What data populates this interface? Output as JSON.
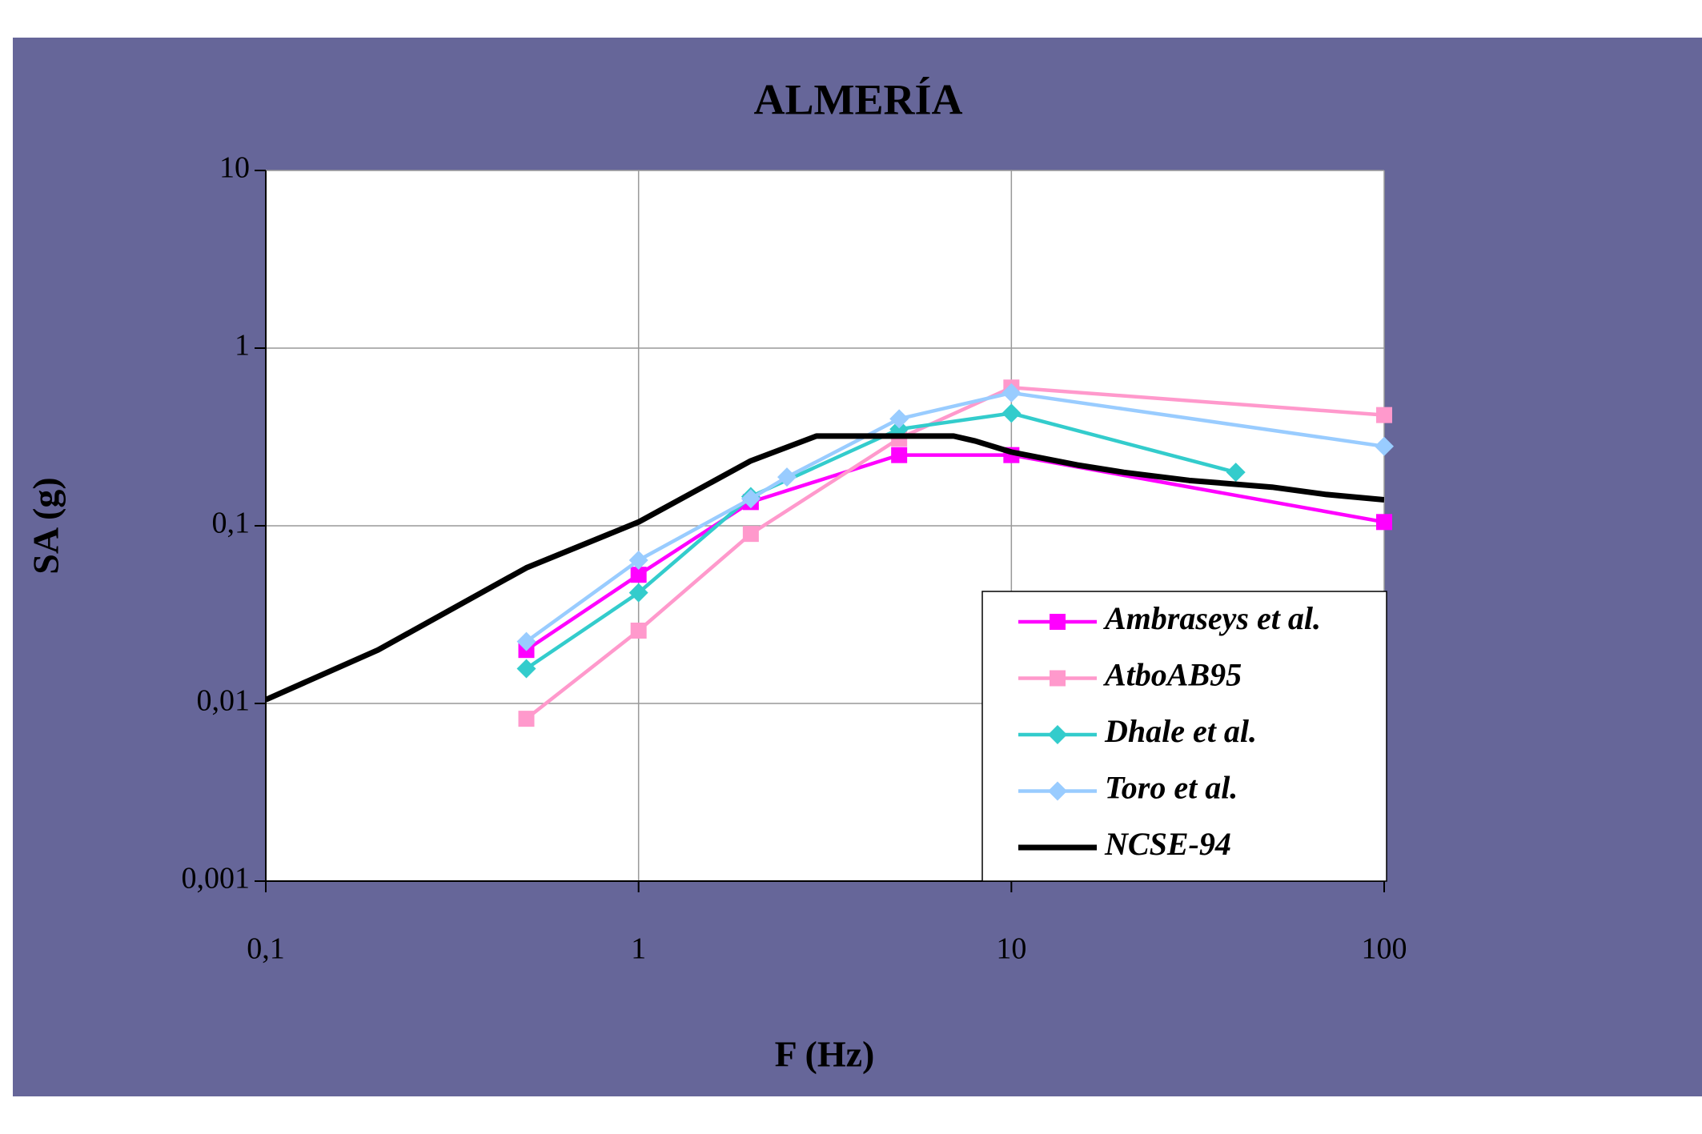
{
  "chart_data": {
    "type": "line",
    "title": "ALMERÍA",
    "xlabel": "F (Hz)",
    "ylabel": "SA (g)",
    "xscale": "log",
    "yscale": "log",
    "grid": true,
    "legend": "lower right",
    "xlim": [
      0.1,
      100
    ],
    "ylim": [
      0.001,
      10
    ],
    "xticks": [
      {
        "value": 0.1,
        "label": "0,1"
      },
      1,
      10,
      100
    ],
    "yticks": [
      {
        "value": 0.001,
        "label": "0,001"
      },
      {
        "value": 0.01,
        "label": "0,01"
      },
      {
        "value": 0.1,
        "label": "0,1"
      },
      1,
      10
    ],
    "series": [
      {
        "name": "Ambraseys et al.",
        "color": "#ff00ff",
        "marker": "square",
        "x": [
          0.5,
          1,
          2,
          5,
          10,
          100
        ],
        "values": [
          0.02,
          0.053,
          0.136,
          0.25,
          0.25,
          0.105
        ]
      },
      {
        "name": "AtboAB95",
        "color": "#ff99cc",
        "marker": "square",
        "x": [
          0.5,
          1,
          2,
          5,
          10,
          100
        ],
        "values": [
          0.0082,
          0.0257,
          0.09,
          0.31,
          0.6,
          0.42
        ]
      },
      {
        "name": "Dhale et al.",
        "color": "#33cccc",
        "marker": "diamond",
        "x": [
          0.5,
          1,
          2,
          5,
          10,
          40
        ],
        "values": [
          0.0157,
          0.042,
          0.146,
          0.35,
          0.43,
          0.2
        ]
      },
      {
        "name": "Toro et al.",
        "color": "#99ccff",
        "marker": "diamond",
        "x": [
          0.5,
          1,
          2,
          2.5,
          5,
          10,
          100
        ],
        "values": [
          0.0223,
          0.064,
          0.142,
          0.188,
          0.4,
          0.56,
          0.28
        ]
      },
      {
        "name": "NCSE-94",
        "color": "#000000",
        "marker": "none",
        "x": [
          0.1,
          0.2,
          0.5,
          1,
          2,
          3,
          7,
          8,
          10,
          15,
          20,
          30,
          50,
          70,
          100
        ],
        "values": [
          0.0105,
          0.02,
          0.058,
          0.105,
          0.232,
          0.32,
          0.32,
          0.3,
          0.26,
          0.22,
          0.2,
          0.18,
          0.165,
          0.15,
          0.14
        ]
      }
    ]
  }
}
